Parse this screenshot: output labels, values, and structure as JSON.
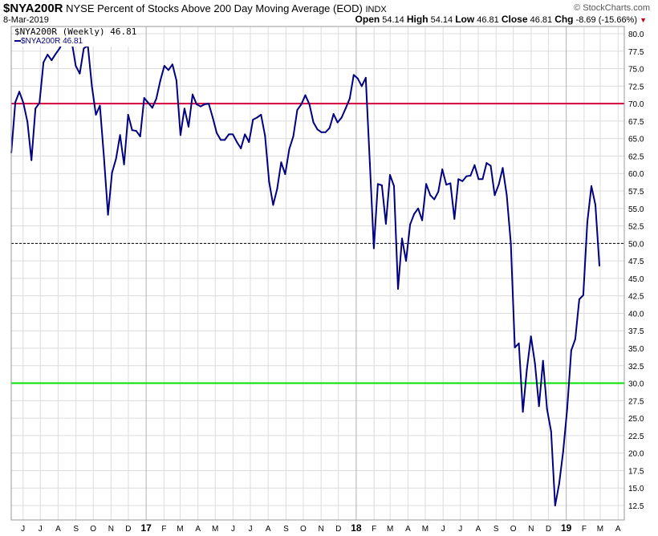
{
  "header": {
    "symbol": "$NYA200R",
    "description": "NYSE Percent of Stocks Above 200 Day Moving Average (EOD)",
    "exchange": "INDX",
    "watermark": "© StockCharts.com",
    "date": "8-Mar-2019",
    "open_label": "Open",
    "open": "54.14",
    "high_label": "High",
    "high": "54.14",
    "low_label": "Low",
    "low": "46.81",
    "close_label": "Close",
    "close": "46.81",
    "chg_label": "Chg",
    "chg": "-8.69 (-15.66%)",
    "chg_icon": "triangle-down"
  },
  "legend": {
    "title": "$NYA200R (Weekly) 46.81",
    "series_label": "$NYA200R 46.81"
  },
  "chart_data": {
    "type": "line",
    "frequency": "Weekly",
    "last_date": "2019-03-08",
    "ylim": [
      10,
      82
    ],
    "y_ticks": [
      "12.5",
      "15.0",
      "17.5",
      "20.0",
      "22.5",
      "25.0",
      "27.5",
      "30.0",
      "32.5",
      "35.0",
      "37.5",
      "40.0",
      "42.5",
      "45.0",
      "47.5",
      "50.0",
      "52.5",
      "55.0",
      "57.5",
      "60.0",
      "62.5",
      "65.0",
      "67.5",
      "70.0",
      "72.5",
      "75.0",
      "77.5",
      "80.0"
    ],
    "x_ticks": [
      {
        "date": "2016-06",
        "label": "J"
      },
      {
        "date": "2016-07",
        "label": "J"
      },
      {
        "date": "2016-08",
        "label": "A"
      },
      {
        "date": "2016-09",
        "label": "S"
      },
      {
        "date": "2016-10",
        "label": "O"
      },
      {
        "date": "2016-11",
        "label": "N"
      },
      {
        "date": "2016-12",
        "label": "D"
      },
      {
        "date": "2017-01",
        "label": "17",
        "year": true
      },
      {
        "date": "2017-02",
        "label": "F"
      },
      {
        "date": "2017-03",
        "label": "M"
      },
      {
        "date": "2017-04",
        "label": "A"
      },
      {
        "date": "2017-05",
        "label": "M"
      },
      {
        "date": "2017-06",
        "label": "J"
      },
      {
        "date": "2017-07",
        "label": "J"
      },
      {
        "date": "2017-08",
        "label": "A"
      },
      {
        "date": "2017-09",
        "label": "S"
      },
      {
        "date": "2017-10",
        "label": "O"
      },
      {
        "date": "2017-11",
        "label": "N"
      },
      {
        "date": "2017-12",
        "label": "D"
      },
      {
        "date": "2018-01",
        "label": "18",
        "year": true
      },
      {
        "date": "2018-02",
        "label": "F"
      },
      {
        "date": "2018-03",
        "label": "M"
      },
      {
        "date": "2018-04",
        "label": "A"
      },
      {
        "date": "2018-05",
        "label": "M"
      },
      {
        "date": "2018-06",
        "label": "J"
      },
      {
        "date": "2018-07",
        "label": "J"
      },
      {
        "date": "2018-08",
        "label": "A"
      },
      {
        "date": "2018-09",
        "label": "S"
      },
      {
        "date": "2018-10",
        "label": "O"
      },
      {
        "date": "2018-11",
        "label": "N"
      },
      {
        "date": "2018-12",
        "label": "D"
      },
      {
        "date": "2019-01",
        "label": "19",
        "year": true
      },
      {
        "date": "2019-02",
        "label": "F"
      },
      {
        "date": "2019-03",
        "label": "M"
      },
      {
        "date": "2019-04",
        "label": "A"
      }
    ],
    "reference_lines": [
      {
        "value": 70,
        "color": "#d4003a",
        "style": "solid"
      },
      {
        "value": 50,
        "color": "#000000",
        "style": "dashed"
      },
      {
        "value": 30,
        "color": "#00e000",
        "style": "solid"
      }
    ],
    "series": [
      {
        "name": "$NYA200R",
        "color": "#000080",
        "values": [
          63.0,
          70.2,
          71.7,
          70.1,
          67.4,
          61.9,
          69.3,
          70.1,
          75.9,
          77.0,
          76.2,
          77.1,
          77.9,
          79.1,
          78.9,
          78.9,
          75.4,
          74.3,
          77.9,
          78.3,
          72.5,
          68.4,
          69.7,
          62.4,
          54.1,
          60.1,
          62.1,
          65.5,
          61.3,
          68.4,
          66.2,
          66.1,
          65.3,
          70.8,
          70.1,
          69.4,
          70.7,
          73.3,
          75.4,
          74.8,
          75.6,
          73.3,
          65.5,
          69.3,
          66.7,
          71.3,
          69.9,
          69.6,
          69.9,
          70.0,
          68.0,
          65.8,
          64.8,
          64.8,
          65.6,
          65.6,
          64.5,
          63.6,
          65.6,
          64.5,
          67.7,
          68.0,
          68.4,
          65.4,
          58.8,
          55.5,
          57.8,
          61.6,
          59.9,
          63.5,
          65.3,
          69.1,
          69.9,
          71.2,
          69.9,
          67.3,
          66.3,
          65.9,
          65.9,
          66.5,
          68.5,
          67.3,
          68.0,
          69.3,
          70.7,
          74.1,
          73.6,
          72.5,
          73.7,
          61.5,
          49.3,
          58.5,
          58.3,
          52.8,
          59.8,
          58.2,
          43.5,
          50.7,
          47.5,
          52.7,
          54.2,
          55.0,
          53.3,
          58.5,
          56.9,
          56.3,
          57.4,
          60.6,
          58.4,
          58.6,
          53.5,
          59.2,
          58.9,
          59.6,
          59.7,
          61.2,
          59.2,
          59.2,
          61.5,
          61.1,
          56.9,
          58.4,
          60.8,
          56.9,
          50.0,
          35.1,
          35.7,
          25.9,
          32.0,
          36.7,
          32.8,
          26.7,
          33.2,
          26.3,
          23.1,
          12.5,
          15.6,
          20.2,
          26.3,
          34.7,
          36.3,
          42.0,
          42.6,
          53.0,
          58.2,
          55.5,
          46.81
        ]
      }
    ]
  }
}
